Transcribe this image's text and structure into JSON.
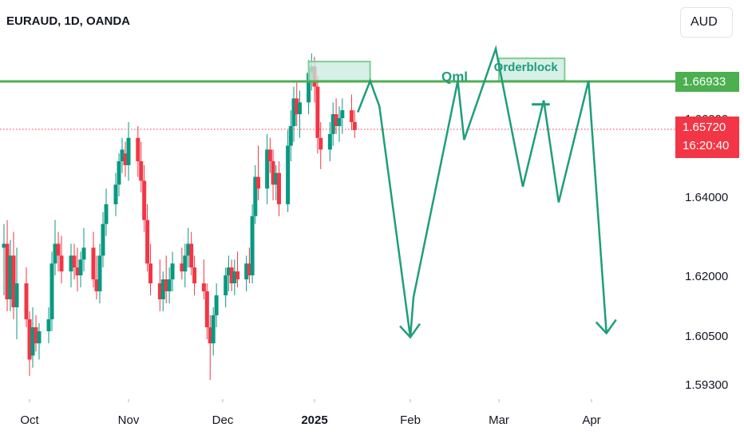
{
  "header": {
    "title": "EURAUD, 1D, OANDA",
    "currency": "AUD"
  },
  "colors": {
    "up": "#089981",
    "down": "#f23645",
    "level_line": "#4caf50",
    "projection": "#1e9e7a",
    "zone_fill": "#c8eadf",
    "zone_border": "#7fcf93"
  },
  "chart_data": {
    "type": "candlestick",
    "symbol": "EURAUD",
    "interval": "1D",
    "source": "OANDA",
    "y_axis": {
      "ticks": [
        1.593,
        1.605,
        1.62,
        1.64,
        1.66,
        1.669
      ]
    },
    "x_axis": {
      "ticks": [
        "Oct",
        "Nov",
        "Dec",
        "2025",
        "Feb",
        "Mar",
        "Apr"
      ]
    },
    "y_labels": [
      "1.59300",
      "1.60500",
      "1.62000",
      "1.64000",
      "1.66000",
      "1.66933"
    ],
    "level": {
      "value": 1.66933,
      "label": "1.66933"
    },
    "last_price": {
      "value": 1.6572,
      "label": "1.65720",
      "countdown": "16:20:40"
    },
    "annotations": [
      {
        "text": "Qml",
        "x": "2025-02-15",
        "y": 1.6695
      },
      {
        "text": "Orderblock",
        "x": "2025-03-10",
        "y": 1.6725
      }
    ],
    "zones": [
      {
        "x0": "2024-12-30",
        "x1": "2025-01-19",
        "y0": 1.6695,
        "y1": 1.6755
      },
      {
        "x0": "2025-03-01",
        "x1": "2025-03-23",
        "y0": 1.6695,
        "y1": 1.6765
      }
    ],
    "projection": [
      [
        "2025-01-15",
        1.6615
      ],
      [
        "2025-01-19",
        1.6695
      ],
      [
        "2025-01-22",
        1.663
      ],
      [
        "2025-02-01",
        1.6045
      ],
      [
        "2025-02-02",
        1.6145
      ],
      [
        "2025-02-16",
        1.6695
      ],
      [
        "2025-02-18",
        1.6545
      ],
      [
        "2025-02-28",
        1.6795
      ],
      [
        "2025-03-09",
        1.6425
      ],
      [
        "2025-03-16",
        1.6645
      ],
      [
        "2025-03-21",
        1.6385
      ],
      [
        "2025-03-31",
        1.6695
      ],
      [
        "2025-04-06",
        1.6055
      ]
    ],
    "projection_arrows": [
      {
        "x": "2025-02-01",
        "y": 1.6045
      },
      {
        "x": "2025-04-06",
        "y": 1.6055
      }
    ],
    "small_bar": {
      "x0": "2025-03-12",
      "x1": "2025-03-18",
      "y": 1.6635
    },
    "candles": [
      [
        "2024-09-20",
        1.645,
        1.648,
        1.622,
        1.627
      ],
      [
        "2024-09-23",
        1.627,
        1.633,
        1.615,
        1.628
      ],
      [
        "2024-09-24",
        1.628,
        1.634,
        1.611,
        1.614
      ],
      [
        "2024-09-25",
        1.614,
        1.629,
        1.611,
        1.625
      ],
      [
        "2024-09-26",
        1.625,
        1.631,
        1.609,
        1.612
      ],
      [
        "2024-09-27",
        1.612,
        1.627,
        1.604,
        1.618
      ],
      [
        "2024-09-30",
        1.618,
        1.622,
        1.607,
        1.609
      ],
      [
        "2024-10-01",
        1.609,
        1.611,
        1.595,
        1.599
      ],
      [
        "2024-10-02",
        1.6,
        1.612,
        1.597,
        1.607
      ],
      [
        "2024-10-03",
        1.607,
        1.61,
        1.601,
        1.603
      ],
      [
        "2024-10-04",
        1.603,
        1.608,
        1.599,
        1.606
      ],
      [
        "2024-10-07",
        1.606,
        1.612,
        1.603,
        1.609
      ],
      [
        "2024-10-08",
        1.609,
        1.626,
        1.606,
        1.623
      ],
      [
        "2024-10-09",
        1.623,
        1.634,
        1.62,
        1.628
      ],
      [
        "2024-10-10",
        1.628,
        1.631,
        1.621,
        1.625
      ],
      [
        "2024-10-11",
        1.625,
        1.63,
        1.618,
        1.621
      ],
      [
        "2024-10-14",
        1.621,
        1.628,
        1.617,
        1.625
      ],
      [
        "2024-10-15",
        1.625,
        1.628,
        1.619,
        1.622
      ],
      [
        "2024-10-16",
        1.622,
        1.627,
        1.616,
        1.62
      ],
      [
        "2024-10-17",
        1.62,
        1.626,
        1.617,
        1.624
      ],
      [
        "2024-10-18",
        1.624,
        1.632,
        1.621,
        1.627
      ],
      [
        "2024-10-21",
        1.627,
        1.631,
        1.617,
        1.619
      ],
      [
        "2024-10-22",
        1.619,
        1.625,
        1.614,
        1.616
      ],
      [
        "2024-10-23",
        1.616,
        1.628,
        1.613,
        1.625
      ],
      [
        "2024-10-24",
        1.625,
        1.636,
        1.622,
        1.633
      ],
      [
        "2024-10-25",
        1.633,
        1.642,
        1.63,
        1.638
      ],
      [
        "2024-10-28",
        1.638,
        1.646,
        1.635,
        1.643
      ],
      [
        "2024-10-29",
        1.643,
        1.651,
        1.64,
        1.649
      ],
      [
        "2024-10-30",
        1.649,
        1.655,
        1.646,
        1.652
      ],
      [
        "2024-10-31",
        1.651,
        1.654,
        1.645,
        1.648
      ],
      [
        "2024-11-01",
        1.648,
        1.659,
        1.644,
        1.655
      ],
      [
        "2024-11-04",
        1.655,
        1.658,
        1.645,
        1.649
      ],
      [
        "2024-11-05",
        1.649,
        1.654,
        1.641,
        1.644
      ],
      [
        "2024-11-06",
        1.644,
        1.648,
        1.631,
        1.634
      ],
      [
        "2024-11-07",
        1.634,
        1.638,
        1.621,
        1.623
      ],
      [
        "2024-11-08",
        1.623,
        1.628,
        1.615,
        1.618
      ],
      [
        "2024-11-11",
        1.618,
        1.624,
        1.611,
        1.614
      ],
      [
        "2024-11-12",
        1.614,
        1.621,
        1.611,
        1.619
      ],
      [
        "2024-11-13",
        1.619,
        1.625,
        1.613,
        1.616
      ],
      [
        "2024-11-14",
        1.616,
        1.622,
        1.613,
        1.619
      ],
      [
        "2024-11-15",
        1.619,
        1.626,
        1.616,
        1.623
      ],
      [
        "2024-11-18",
        1.623,
        1.627,
        1.619,
        1.621
      ],
      [
        "2024-11-19",
        1.621,
        1.628,
        1.617,
        1.625
      ],
      [
        "2024-11-20",
        1.625,
        1.632,
        1.622,
        1.628
      ],
      [
        "2024-11-21",
        1.628,
        1.631,
        1.62,
        1.622
      ],
      [
        "2024-11-22",
        1.622,
        1.625,
        1.615,
        1.618
      ],
      [
        "2024-11-25",
        1.618,
        1.624,
        1.614,
        1.616
      ],
      [
        "2024-11-26",
        1.616,
        1.618,
        1.604,
        1.607
      ],
      [
        "2024-11-27",
        1.607,
        1.61,
        1.594,
        1.603
      ],
      [
        "2024-11-28",
        1.603,
        1.612,
        1.6,
        1.61
      ],
      [
        "2024-11-29",
        1.61,
        1.618,
        1.607,
        1.615
      ],
      [
        "2024-12-02",
        1.615,
        1.622,
        1.612,
        1.62
      ],
      [
        "2024-12-03",
        1.62,
        1.625,
        1.616,
        1.622
      ],
      [
        "2024-12-04",
        1.622,
        1.624,
        1.616,
        1.618
      ],
      [
        "2024-12-05",
        1.618,
        1.624,
        1.615,
        1.621
      ],
      [
        "2024-12-06",
        1.621,
        1.626,
        1.617,
        1.619
      ],
      [
        "2024-12-09",
        1.619,
        1.625,
        1.616,
        1.623
      ],
      [
        "2024-12-10",
        1.623,
        1.627,
        1.618,
        1.62
      ],
      [
        "2024-12-11",
        1.62,
        1.638,
        1.618,
        1.635
      ],
      [
        "2024-12-12",
        1.635,
        1.648,
        1.633,
        1.645
      ],
      [
        "2024-12-13",
        1.645,
        1.653,
        1.639,
        1.642
      ],
      [
        "2024-12-16",
        1.642,
        1.656,
        1.638,
        1.652
      ],
      [
        "2024-12-17",
        1.652,
        1.655,
        1.646,
        1.649
      ],
      [
        "2024-12-18",
        1.649,
        1.652,
        1.639,
        1.643
      ],
      [
        "2024-12-19",
        1.643,
        1.648,
        1.639,
        1.646
      ],
      [
        "2024-12-20",
        1.646,
        1.649,
        1.635,
        1.638
      ],
      [
        "2024-12-23",
        1.638,
        1.657,
        1.636,
        1.653
      ],
      [
        "2024-12-24",
        1.653,
        1.662,
        1.649,
        1.658
      ],
      [
        "2024-12-25",
        1.658,
        1.668,
        1.654,
        1.665
      ],
      [
        "2024-12-26",
        1.665,
        1.669,
        1.658,
        1.661
      ],
      [
        "2024-12-27",
        1.661,
        1.667,
        1.655,
        1.664
      ],
      [
        "2024-12-30",
        1.664,
        1.676,
        1.661,
        1.672
      ],
      [
        "2024-12-31",
        1.672,
        1.678,
        1.667,
        1.674
      ],
      [
        "2025-01-01",
        1.674,
        1.677,
        1.664,
        1.668
      ],
      [
        "2025-01-02",
        1.668,
        1.671,
        1.651,
        1.655
      ],
      [
        "2025-01-03",
        1.655,
        1.659,
        1.647,
        1.652
      ],
      [
        "2025-01-06",
        1.652,
        1.659,
        1.649,
        1.656
      ],
      [
        "2025-01-07",
        1.656,
        1.664,
        1.653,
        1.661
      ],
      [
        "2025-01-08",
        1.661,
        1.665,
        1.656,
        1.658
      ],
      [
        "2025-01-09",
        1.658,
        1.663,
        1.654,
        1.66
      ],
      [
        "2025-01-10",
        1.66,
        1.665,
        1.656,
        1.662
      ],
      [
        "2025-01-13",
        1.662,
        1.666,
        1.657,
        1.659
      ],
      [
        "2025-01-14",
        1.659,
        1.662,
        1.655,
        1.657
      ]
    ]
  }
}
